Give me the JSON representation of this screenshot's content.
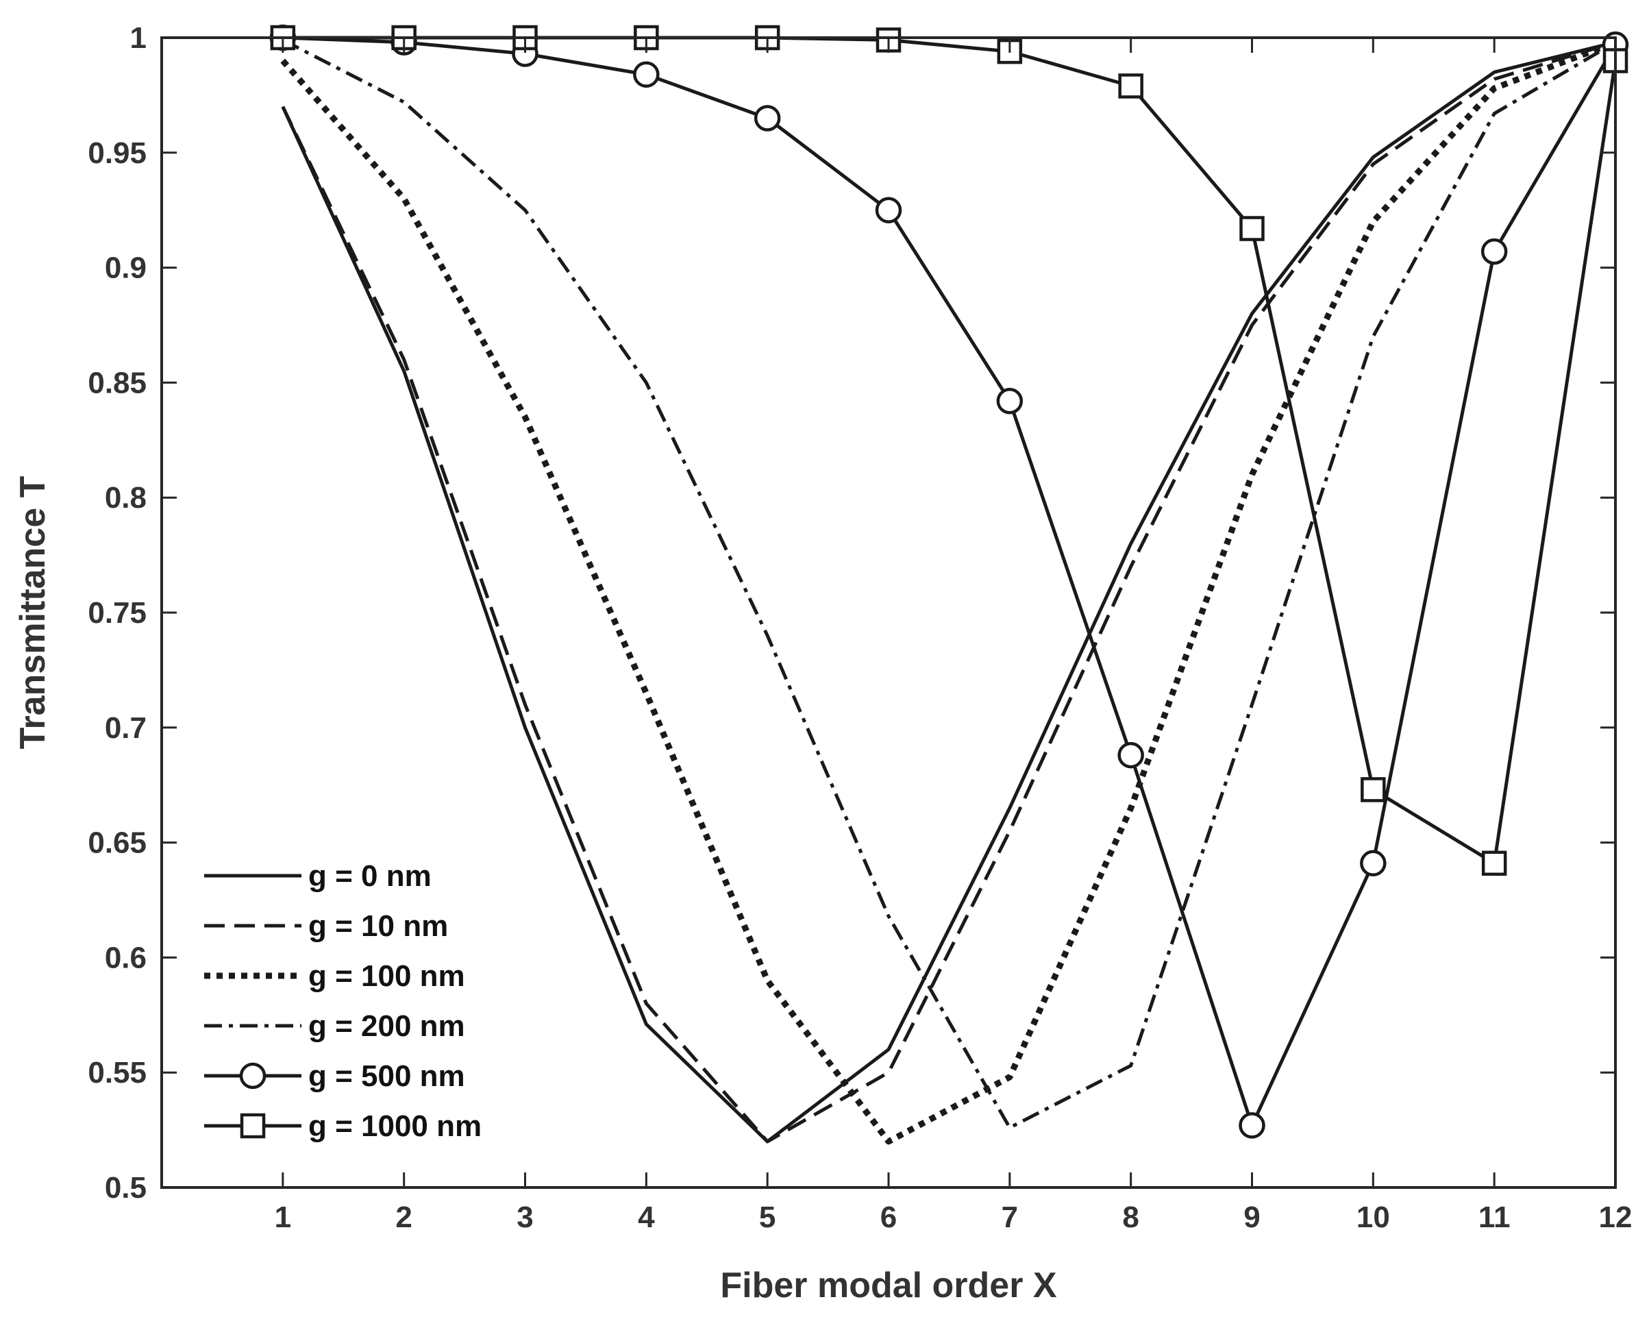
{
  "chart_data": {
    "type": "line",
    "xlabel": "Fiber modal order X",
    "ylabel": "Transmittance T",
    "xlim": [
      0,
      12
    ],
    "ylim": [
      0.5,
      1
    ],
    "xticks": [
      1,
      2,
      3,
      4,
      5,
      6,
      7,
      8,
      9,
      10,
      11,
      12
    ],
    "yticks": [
      "0.5",
      "0.55",
      "0.6",
      "0.65",
      "0.7",
      "0.75",
      "0.8",
      "0.85",
      "0.9",
      "0.95",
      "1"
    ],
    "grid": false,
    "legend_position": "bottom-left",
    "x": [
      1,
      2,
      3,
      4,
      5,
      6,
      7,
      8,
      9,
      10,
      11,
      12
    ],
    "series": [
      {
        "name": "g = 0 nm",
        "style": "solid",
        "marker": "none",
        "values": [
          0.97,
          0.855,
          0.7,
          0.571,
          0.52,
          0.56,
          0.665,
          0.78,
          0.88,
          0.948,
          0.985,
          0.998
        ]
      },
      {
        "name": "g = 10 nm",
        "style": "dashed",
        "marker": "none",
        "values": [
          0.97,
          0.86,
          0.71,
          0.58,
          0.52,
          0.55,
          0.655,
          0.77,
          0.875,
          0.945,
          0.982,
          0.998
        ]
      },
      {
        "name": "g = 100 nm",
        "style": "dotted",
        "marker": "none",
        "values": [
          0.99,
          0.93,
          0.835,
          0.715,
          0.59,
          0.52,
          0.548,
          0.665,
          0.81,
          0.92,
          0.978,
          0.998
        ]
      },
      {
        "name": "g = 200 nm",
        "style": "dashdot",
        "marker": "none",
        "values": [
          0.999,
          0.972,
          0.925,
          0.85,
          0.74,
          0.618,
          0.526,
          0.553,
          0.71,
          0.87,
          0.967,
          0.998
        ]
      },
      {
        "name": "g = 500 nm",
        "style": "solid",
        "marker": "circle",
        "values": [
          1.0,
          0.998,
          0.993,
          0.984,
          0.965,
          0.925,
          0.842,
          0.688,
          0.527,
          0.641,
          0.907,
          0.997
        ]
      },
      {
        "name": "g = 1000 nm",
        "style": "solid",
        "marker": "square",
        "values": [
          1.0,
          1.0,
          1.0,
          1.0,
          1.0,
          0.999,
          0.994,
          0.979,
          0.917,
          0.673,
          0.641,
          0.99
        ]
      }
    ]
  }
}
